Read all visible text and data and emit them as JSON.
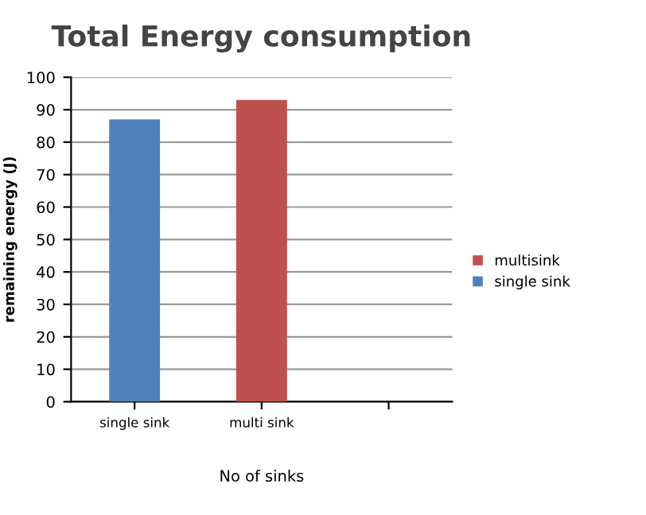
{
  "chart_data": {
    "type": "bar",
    "title": "Total Energy consumption",
    "xlabel": "No of sinks",
    "ylabel": "remaining energy (J)",
    "categories": [
      "single sink",
      "multi sink",
      null
    ],
    "series": [
      {
        "name": "multisink",
        "color": "#c0504d",
        "values": [
          null,
          93,
          null
        ]
      },
      {
        "name": "single sink",
        "color": "#4f81bd",
        "values": [
          87,
          null,
          null
        ]
      }
    ],
    "ylim": [
      0,
      100
    ],
    "yticks": [
      0,
      10,
      20,
      30,
      40,
      50,
      60,
      70,
      80,
      90,
      100
    ],
    "grid": "y",
    "legend": "right"
  }
}
